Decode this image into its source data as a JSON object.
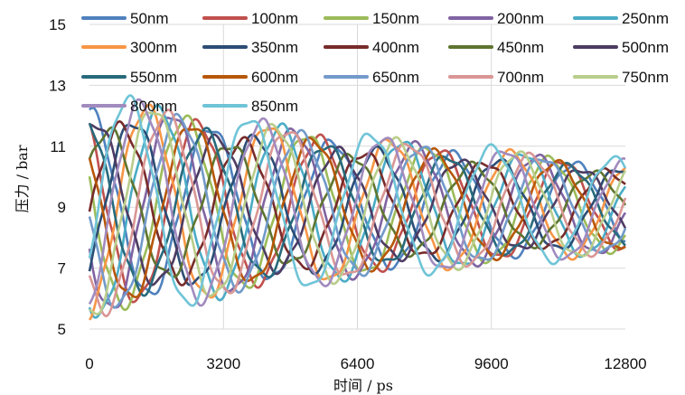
{
  "chart_data": {
    "type": "line",
    "title": "",
    "xlabel": "时间 / ps",
    "ylabel": "压力 / bar",
    "xlim": [
      0,
      12800
    ],
    "ylim": [
      5,
      15
    ],
    "xticks": [
      0,
      3200,
      6400,
      9600,
      12800
    ],
    "yticks": [
      5,
      7,
      9,
      11,
      13,
      15
    ],
    "xtick_labels": [
      "0",
      "3200",
      "6400",
      "9600",
      "12800"
    ],
    "ytick_labels": [
      "5",
      "7",
      "9",
      "11",
      "13",
      "15"
    ],
    "grid": "horizontal",
    "legend": "top, 5 columns",
    "oscillation": {
      "mean": 9.0,
      "period_ps": 2900,
      "decay_ps": 14500,
      "phase_shift_per_series": 0.21
    },
    "x": [
      0,
      320,
      640,
      960,
      1280,
      1600,
      1920,
      2240,
      2560,
      2880,
      3200,
      3520,
      3840,
      4160,
      4480,
      4800,
      5120,
      5440,
      5760,
      6080,
      6400,
      6720,
      7040,
      7360,
      7680,
      8000,
      8320,
      8640,
      8960,
      9280,
      9600,
      9920,
      10240,
      10560,
      10880,
      11200,
      11520,
      11840,
      12160,
      12480,
      12800
    ],
    "series": [
      {
        "name": "50nm",
        "color": "#4F81BD",
        "amp0": 3.2
      },
      {
        "name": "100nm",
        "color": "#C0504D",
        "amp0": 3.3
      },
      {
        "name": "150nm",
        "color": "#9BBB59",
        "amp0": 3.4
      },
      {
        "name": "200nm",
        "color": "#8064A2",
        "amp0": 3.5
      },
      {
        "name": "250nm",
        "color": "#4BACC6",
        "amp0": 3.6
      },
      {
        "name": "300nm",
        "color": "#F79646",
        "amp0": 3.6
      },
      {
        "name": "350nm",
        "color": "#2C4D75",
        "amp0": 3.0
      },
      {
        "name": "400nm",
        "color": "#772C2A",
        "amp0": 2.8
      },
      {
        "name": "450nm",
        "color": "#5F7530",
        "amp0": 2.6
      },
      {
        "name": "500nm",
        "color": "#4D3B62",
        "amp0": 2.8
      },
      {
        "name": "550nm",
        "color": "#276A7C",
        "amp0": 3.0
      },
      {
        "name": "600nm",
        "color": "#B65708",
        "amp0": 3.2
      },
      {
        "name": "650nm",
        "color": "#729ACA",
        "amp0": 3.4
      },
      {
        "name": "700nm",
        "color": "#D99694",
        "amp0": 3.5
      },
      {
        "name": "750nm",
        "color": "#B9CD8B",
        "amp0": 3.6
      },
      {
        "name": "800nm",
        "color": "#A18BBE",
        "amp0": 3.7
      },
      {
        "name": "850nm",
        "color": "#6FC4D7",
        "amp0": 3.8
      }
    ]
  }
}
